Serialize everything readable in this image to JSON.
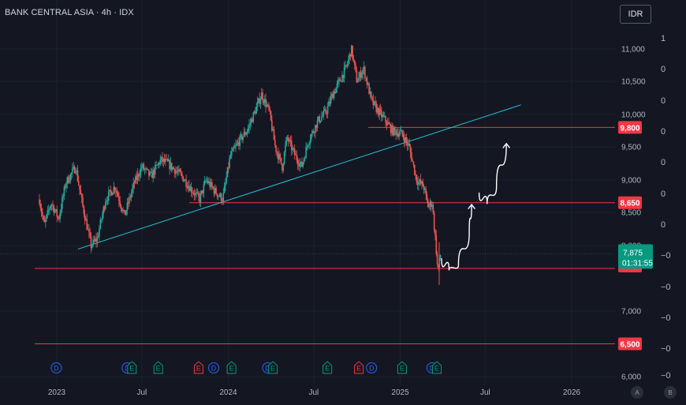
{
  "header": {
    "title": "BANK CENTRAL ASIA · 4h · IDX",
    "currency_button": "IDR"
  },
  "side_scale": [
    "1",
    "0",
    "0",
    "0",
    "0",
    "0",
    "0",
    "−0",
    "−0",
    "−0",
    "−0",
    "−0"
  ],
  "colors": {
    "up": "#26a69a",
    "down": "#ef5350",
    "trendline": "#26c6da",
    "level": "#f23645",
    "background": "#141722"
  },
  "chart_data": {
    "type": "candlestick",
    "x_tick_labels": [
      "2023",
      "Jul",
      "2024",
      "Jul",
      "2025",
      "Jul",
      "2026"
    ],
    "y_tick_labels": [
      "11,000",
      "10,500",
      "10,000",
      "9,500",
      "9,000",
      "8,500",
      "8,000",
      "7,000",
      "6,000"
    ],
    "ylim": [
      6000,
      11250
    ],
    "price_path": [
      [
        "2022-11-25",
        8700
      ],
      [
        "2022-12-05",
        8300
      ],
      [
        "2022-12-20",
        8650
      ],
      [
        "2023-01-05",
        8400
      ],
      [
        "2023-01-20",
        8950
      ],
      [
        "2023-02-10",
        9200
      ],
      [
        "2023-02-25",
        8600
      ],
      [
        "2023-03-15",
        8000
      ],
      [
        "2023-03-28",
        8100
      ],
      [
        "2023-04-15",
        8700
      ],
      [
        "2023-05-05",
        8900
      ],
      [
        "2023-05-25",
        8450
      ],
      [
        "2023-06-15",
        8950
      ],
      [
        "2023-07-01",
        9200
      ],
      [
        "2023-07-20",
        9050
      ],
      [
        "2023-08-10",
        9300
      ],
      [
        "2023-08-25",
        9250
      ],
      [
        "2023-09-10",
        9150
      ],
      [
        "2023-09-25",
        9050
      ],
      [
        "2023-10-15",
        8850
      ],
      [
        "2023-11-01",
        8700
      ],
      [
        "2023-11-15",
        9000
      ],
      [
        "2023-12-01",
        8850
      ],
      [
        "2023-12-20",
        8700
      ],
      [
        "2024-01-05",
        9350
      ],
      [
        "2024-01-25",
        9600
      ],
      [
        "2024-02-10",
        9750
      ],
      [
        "2024-03-01",
        10100
      ],
      [
        "2024-03-12",
        10300
      ],
      [
        "2024-03-28",
        10050
      ],
      [
        "2024-04-10",
        9500
      ],
      [
        "2024-04-25",
        9200
      ],
      [
        "2024-05-05",
        9650
      ],
      [
        "2024-05-20",
        9400
      ],
      [
        "2024-06-05",
        9200
      ],
      [
        "2024-06-20",
        9600
      ],
      [
        "2024-07-10",
        9900
      ],
      [
        "2024-07-28",
        10050
      ],
      [
        "2024-08-10",
        10300
      ],
      [
        "2024-08-25",
        10500
      ],
      [
        "2024-09-10",
        10750
      ],
      [
        "2024-09-19",
        11000
      ],
      [
        "2024-10-01",
        10500
      ],
      [
        "2024-10-15",
        10700
      ],
      [
        "2024-11-01",
        10200
      ],
      [
        "2024-11-15",
        10050
      ],
      [
        "2024-12-01",
        9900
      ],
      [
        "2024-12-15",
        9750
      ],
      [
        "2025-01-05",
        9700
      ],
      [
        "2025-01-20",
        9500
      ],
      [
        "2025-02-05",
        9000
      ],
      [
        "2025-02-20",
        8900
      ],
      [
        "2025-03-01",
        8600
      ],
      [
        "2025-03-10",
        8650
      ],
      [
        "2025-03-18",
        8000
      ],
      [
        "2025-03-22",
        7600
      ],
      [
        "2025-03-28",
        7875
      ]
    ],
    "horizontal_levels": [
      {
        "price": 9800,
        "label": "9,800",
        "from": "2024-10-25"
      },
      {
        "price": 8650,
        "label": "8,650",
        "from": "2023-10-10"
      },
      {
        "price": 7650,
        "label": "",
        "from": "2022-11-15"
      },
      {
        "price": 6500,
        "label": "6,500",
        "from": "2022-11-15"
      }
    ],
    "trendline": {
      "from": [
        "2023-02-15",
        7945
      ],
      "to": [
        "2025-09-15",
        10145
      ]
    },
    "last_price": {
      "value": "7,875",
      "countdown": "01:31:55"
    },
    "projected_path_1": [
      [
        "2025-03-30",
        7800
      ],
      [
        "2025-04-15",
        7620
      ],
      [
        "2025-05-05",
        7700
      ],
      [
        "2025-05-28",
        8200
      ],
      [
        "2025-06-02",
        8620
      ]
    ],
    "projected_path_2": [
      [
        "2025-06-18",
        8800
      ],
      [
        "2025-07-05",
        8630
      ],
      [
        "2025-07-25",
        8900
      ],
      [
        "2025-08-15",
        9550
      ]
    ],
    "events": [
      {
        "date": "2022-12-31",
        "type": "D"
      },
      {
        "date": "2023-05-31",
        "type": "D"
      },
      {
        "date": "2023-06-10",
        "type": "E"
      },
      {
        "date": "2023-08-05",
        "type": "E"
      },
      {
        "date": "2023-10-30",
        "type": "E"
      },
      {
        "date": "2023-12-01",
        "type": "D"
      },
      {
        "date": "2024-01-08",
        "type": "E"
      },
      {
        "date": "2024-03-25",
        "type": "D"
      },
      {
        "date": "2024-04-05",
        "type": "E"
      },
      {
        "date": "2024-07-30",
        "type": "E"
      },
      {
        "date": "2024-10-05",
        "type": "E"
      },
      {
        "date": "2024-11-01",
        "type": "D"
      },
      {
        "date": "2025-01-05",
        "type": "E"
      },
      {
        "date": "2025-03-10",
        "type": "D"
      },
      {
        "date": "2025-03-20",
        "type": "E"
      }
    ]
  },
  "bottom_buttons": [
    "A",
    "B"
  ]
}
